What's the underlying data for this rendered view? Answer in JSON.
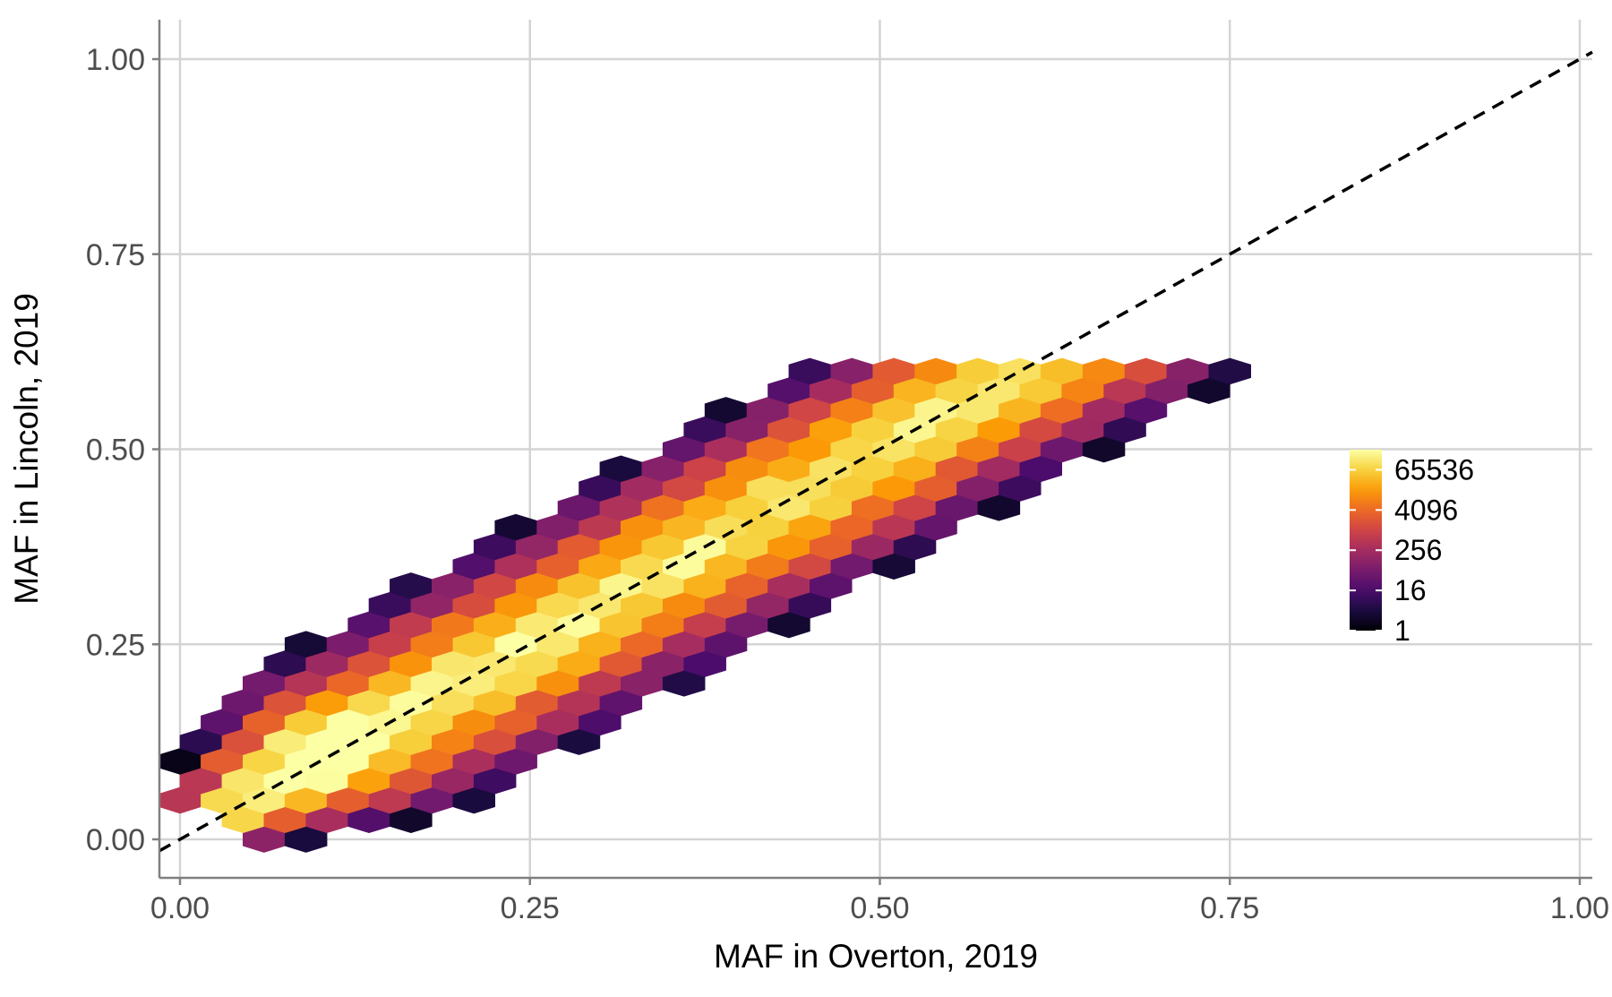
{
  "chart_data": {
    "type": "heatmap",
    "subtype": "hexbin",
    "title": "",
    "xlabel": "MAF in Overton, 2019",
    "ylabel": "MAF in Lincoln, 2019",
    "xlim": [
      -0.03,
      1.0
    ],
    "ylim": [
      -0.05,
      1.05
    ],
    "x_ticks": [
      0.0,
      0.25,
      0.5,
      0.75,
      1.0
    ],
    "x_tick_labels": [
      "0.00",
      "0.25",
      "0.50",
      "0.75",
      "1.00"
    ],
    "y_ticks": [
      0.0,
      0.25,
      0.5,
      0.75,
      1.0
    ],
    "y_tick_labels": [
      "0.00",
      "0.25",
      "0.50",
      "0.75",
      "1.00"
    ],
    "grid": true,
    "reference_line": {
      "slope": 1,
      "intercept": 0,
      "style": "dashed",
      "color": "#000000"
    },
    "color_scale": {
      "name": "inferno",
      "transform": "log2",
      "min": 1,
      "max": 262144,
      "colors": [
        "#000004",
        "#1b0c41",
        "#4a0c6b",
        "#781c6d",
        "#a52c60",
        "#cf4446",
        "#ed6925",
        "#fb9b06",
        "#f7d13d",
        "#fcffa4"
      ]
    },
    "legend": {
      "position": "right-inside",
      "ticks": [
        1,
        16,
        256,
        4096,
        65536
      ],
      "tick_labels": [
        "1",
        "16",
        "256",
        "4096",
        "65536"
      ]
    },
    "density_model": {
      "description": "Approximate hexbin counts along y = x band",
      "band_center_slope": 1,
      "peak_points": [
        [
          0.08,
          0.08
        ],
        [
          0.12,
          0.17
        ]
      ],
      "max_count": 262144
    }
  }
}
